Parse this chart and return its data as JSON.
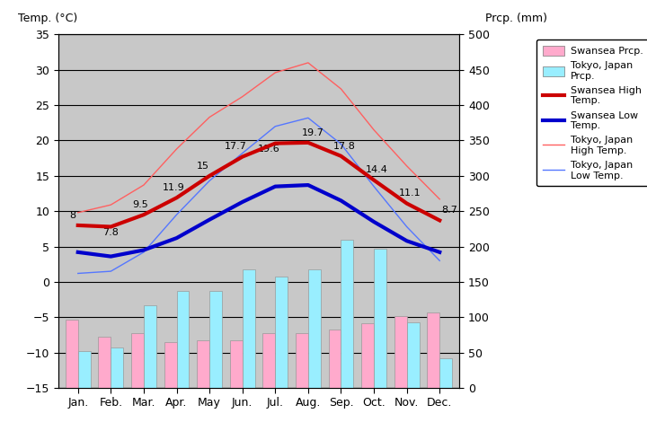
{
  "months": [
    "Jan.",
    "Feb.",
    "Mar.",
    "Apr.",
    "May",
    "Jun.",
    "Jul.",
    "Aug.",
    "Sep.",
    "Oct.",
    "Nov.",
    "Dec."
  ],
  "swansea_high": [
    8.0,
    7.8,
    9.5,
    11.9,
    15.0,
    17.7,
    19.6,
    19.7,
    17.8,
    14.4,
    11.1,
    8.7
  ],
  "swansea_low": [
    4.2,
    3.6,
    4.5,
    6.2,
    8.8,
    11.3,
    13.5,
    13.7,
    11.5,
    8.5,
    5.8,
    4.2
  ],
  "tokyo_high": [
    9.8,
    10.9,
    13.7,
    18.8,
    23.3,
    26.2,
    29.6,
    31.0,
    27.3,
    21.5,
    16.4,
    11.7
  ],
  "tokyo_low": [
    1.2,
    1.5,
    4.2,
    9.5,
    14.3,
    18.2,
    22.0,
    23.2,
    19.5,
    13.5,
    7.8,
    3.0
  ],
  "swansea_prcp_mm": [
    97,
    72,
    77,
    65,
    67,
    67,
    77,
    77,
    82,
    92,
    102,
    107
  ],
  "tokyo_prcp_mm": [
    52,
    57,
    117,
    137,
    137,
    168,
    157,
    168,
    210,
    197,
    93,
    42
  ],
  "temp_ylim": [
    -15,
    35
  ],
  "prcp_ylim": [
    0,
    500
  ],
  "bg_color": "#c8c8c8",
  "plot_bg_color": "#c8c8c8",
  "swansea_high_color": "#cc0000",
  "swansea_low_color": "#0000cc",
  "tokyo_high_color": "#ff6060",
  "tokyo_low_color": "#5577ff",
  "swansea_prcp_color": "#ffaacc",
  "tokyo_prcp_color": "#99eeff",
  "title_left": "Temp. (°C)",
  "title_right": "Prcp. (mm)",
  "swansea_high_label": "Swansea High\nTemp.",
  "swansea_low_label": "Swansea Low\nTemp.",
  "tokyo_high_label": "Tokyo, Japan\nHigh Temp.",
  "tokyo_low_label": "Tokyo, Japan\nLow Temp.",
  "swansea_prcp_label": "Swansea Prcp.",
  "tokyo_prcp_label": "Tokyo, Japan\nPrcp."
}
